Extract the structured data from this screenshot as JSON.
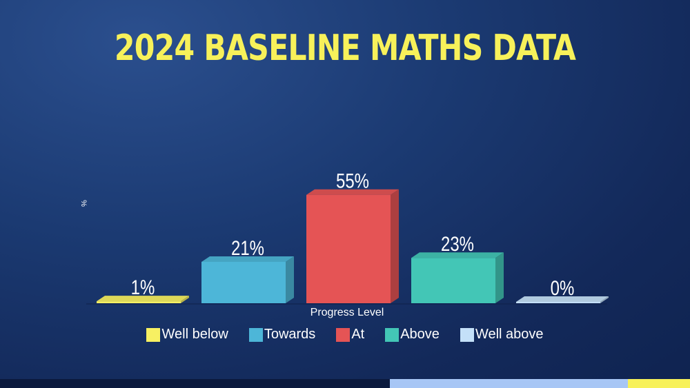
{
  "title": "2024 BASELINE MATHS DATA",
  "chart_data": {
    "type": "bar",
    "title": "2024 BASELINE MATHS DATA",
    "xlabel": "Progress Level",
    "ylabel": "%",
    "categories": [
      "Well below",
      "Towards",
      "At",
      "Above",
      "Well above"
    ],
    "values": [
      1,
      21,
      55,
      23,
      0
    ],
    "value_labels": [
      "1%",
      "21%",
      "55%",
      "23%",
      "0%"
    ],
    "colors": [
      "#f7f062",
      "#4db6d8",
      "#e55455",
      "#43c6b6",
      "#c4e0f8"
    ],
    "ylim": [
      0,
      60
    ],
    "grid": false,
    "legend_position": "bottom"
  }
}
